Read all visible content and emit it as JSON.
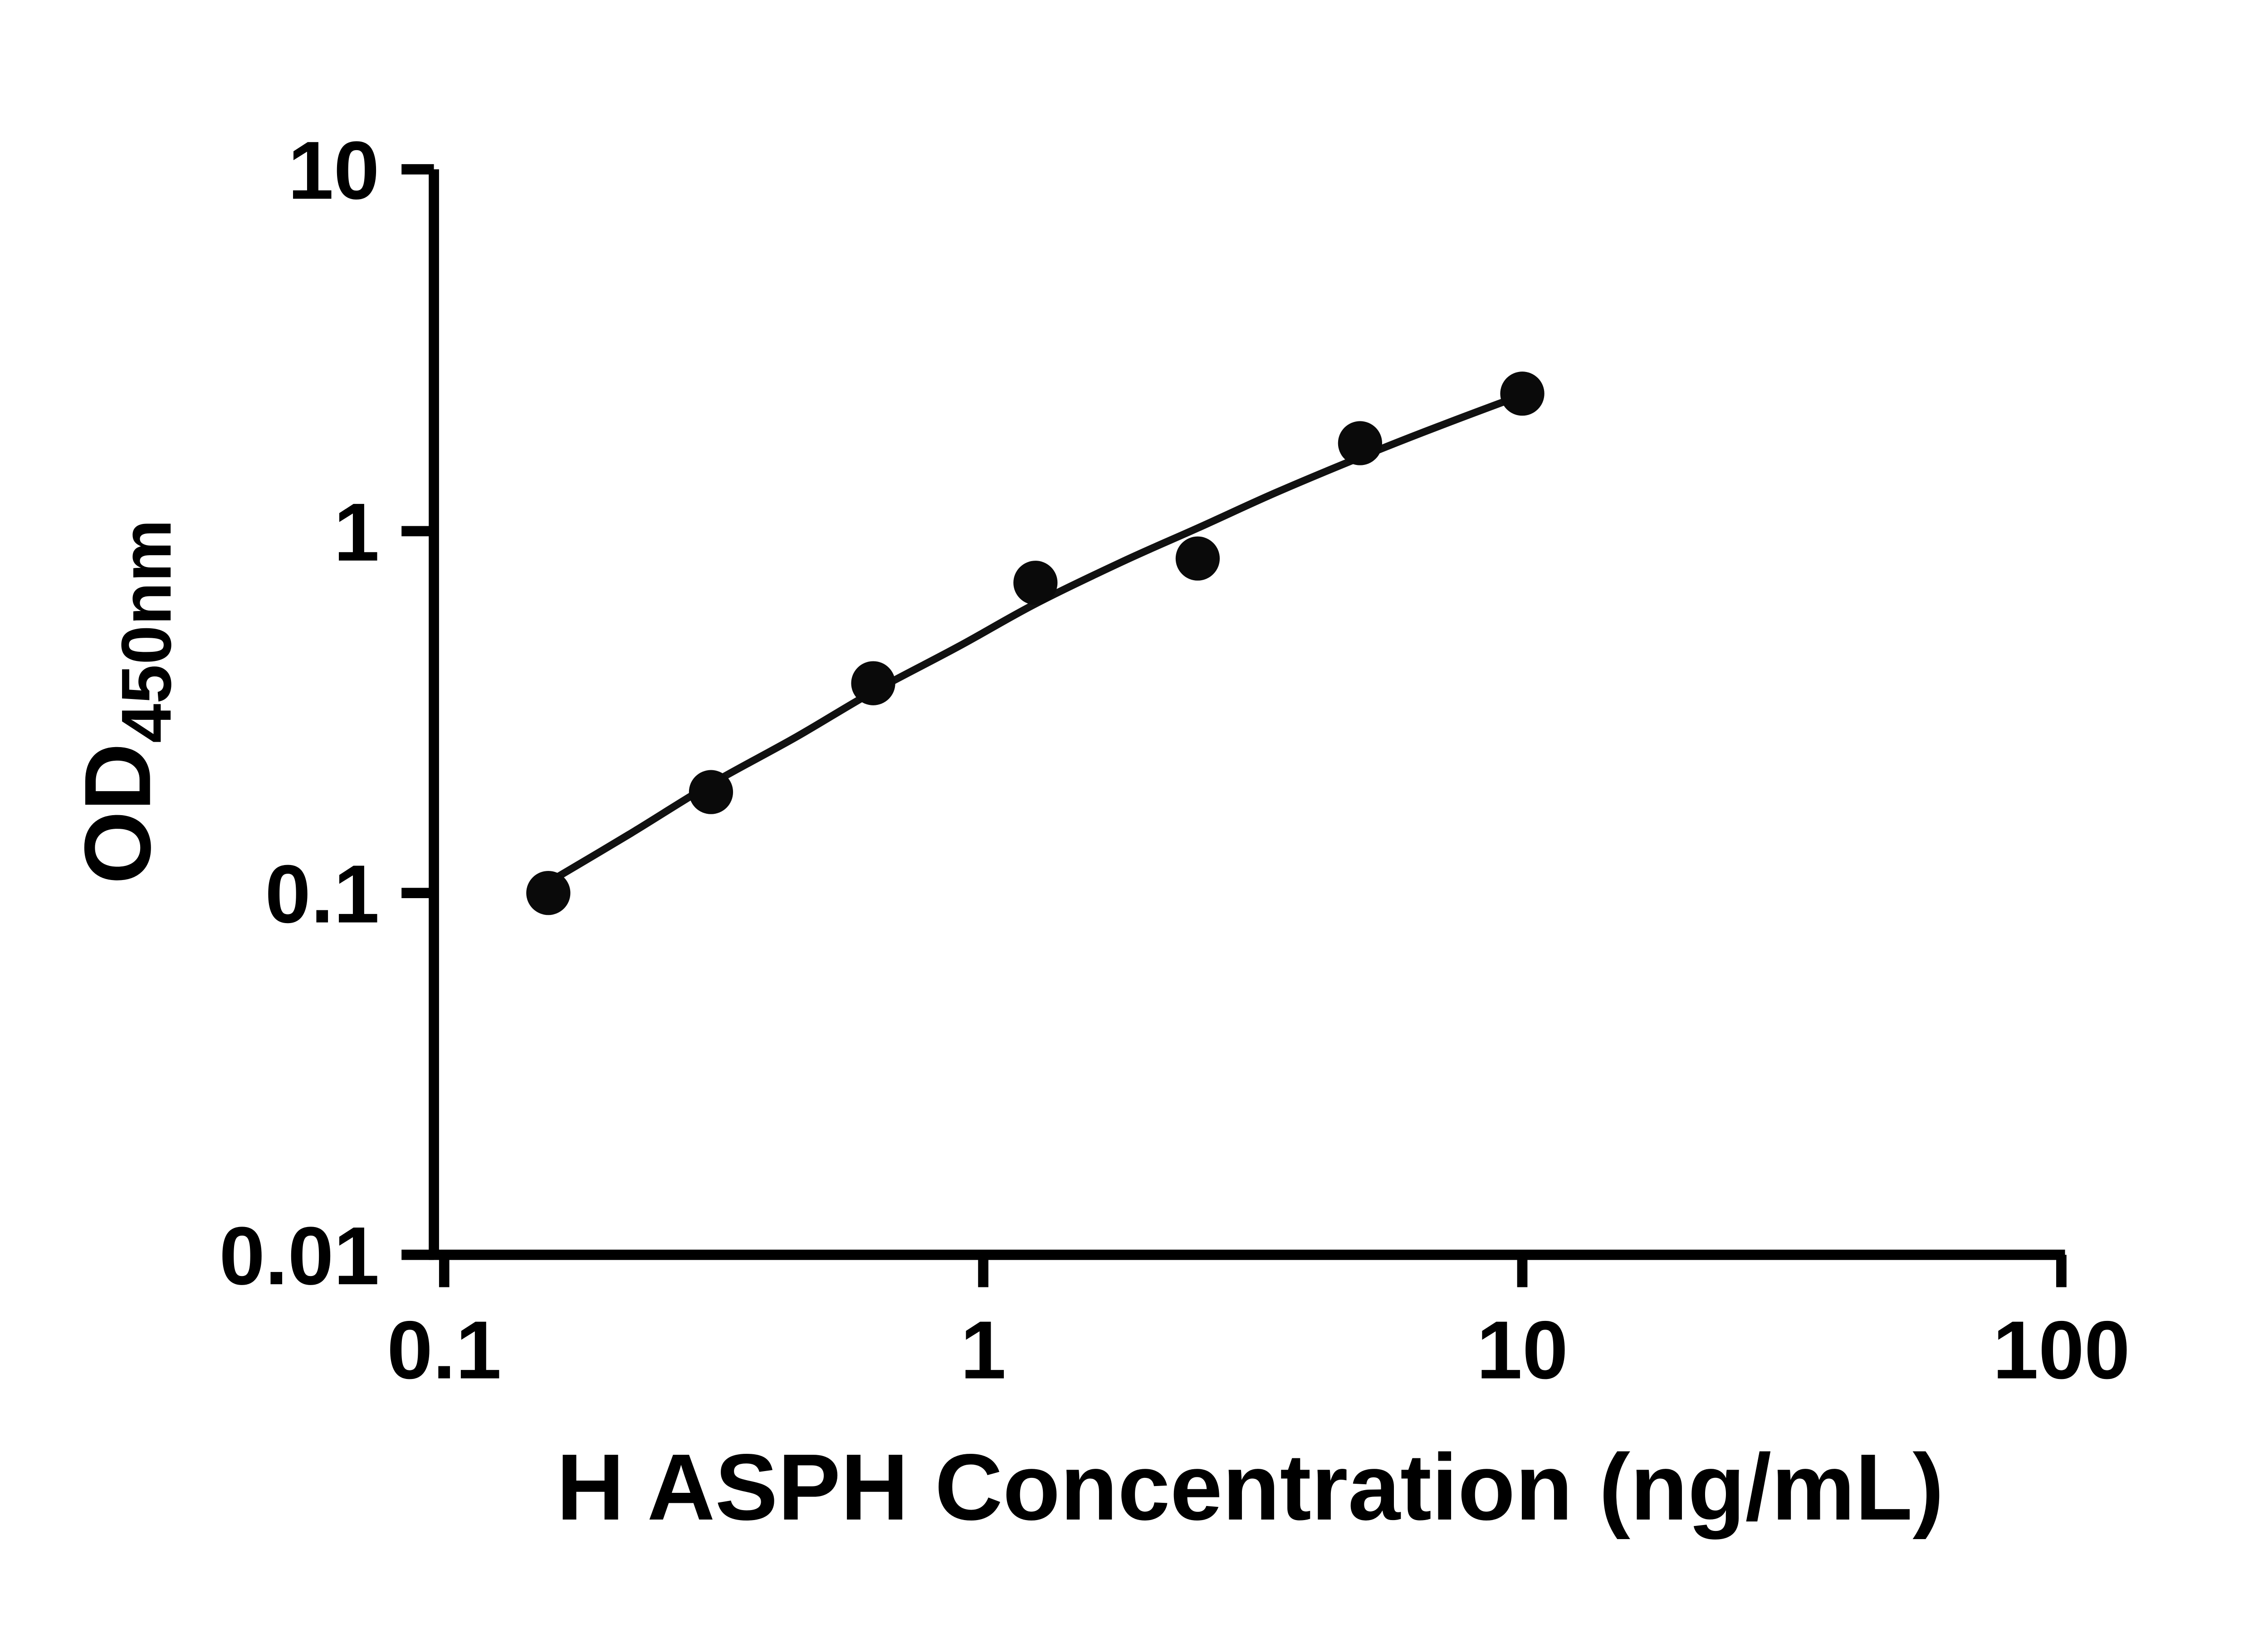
{
  "chart_data": {
    "type": "scatter",
    "title": "",
    "xlabel": "H ASPH Concentration (ng/mL)",
    "ylabel_main": "OD",
    "ylabel_sub": "450nm",
    "x_scale": "log",
    "y_scale": "log",
    "xlim": [
      0.1,
      100
    ],
    "ylim": [
      0.01,
      10
    ],
    "grid": false,
    "legend": "none",
    "x_ticks": [
      {
        "value": 0.1,
        "label": "0.1"
      },
      {
        "value": 1,
        "label": "1"
      },
      {
        "value": 10,
        "label": "10"
      },
      {
        "value": 100,
        "label": "100"
      }
    ],
    "y_ticks": [
      {
        "value": 0.01,
        "label": "0.01"
      },
      {
        "value": 0.1,
        "label": "0.1"
      },
      {
        "value": 1,
        "label": "1"
      },
      {
        "value": 10,
        "label": "10"
      }
    ],
    "points": [
      {
        "x": 0.156,
        "y": 0.1
      },
      {
        "x": 0.3125,
        "y": 0.19
      },
      {
        "x": 0.625,
        "y": 0.38
      },
      {
        "x": 1.25,
        "y": 0.72
      },
      {
        "x": 2.5,
        "y": 0.84
      },
      {
        "x": 5,
        "y": 1.75
      },
      {
        "x": 10,
        "y": 2.4
      }
    ],
    "fit_curve": [
      {
        "x": 0.156,
        "y": 0.107
      },
      {
        "x": 0.22,
        "y": 0.145
      },
      {
        "x": 0.3125,
        "y": 0.2
      },
      {
        "x": 0.45,
        "y": 0.27
      },
      {
        "x": 0.625,
        "y": 0.36
      },
      {
        "x": 0.9,
        "y": 0.48
      },
      {
        "x": 1.25,
        "y": 0.63
      },
      {
        "x": 1.8,
        "y": 0.82
      },
      {
        "x": 2.5,
        "y": 1.02
      },
      {
        "x": 3.5,
        "y": 1.28
      },
      {
        "x": 5,
        "y": 1.6
      },
      {
        "x": 7,
        "y": 1.95
      },
      {
        "x": 10,
        "y": 2.38
      }
    ],
    "colors": {
      "points": "#0a0a0a",
      "curve": "#111111",
      "axis": "#000000",
      "background": "#ffffff"
    }
  }
}
